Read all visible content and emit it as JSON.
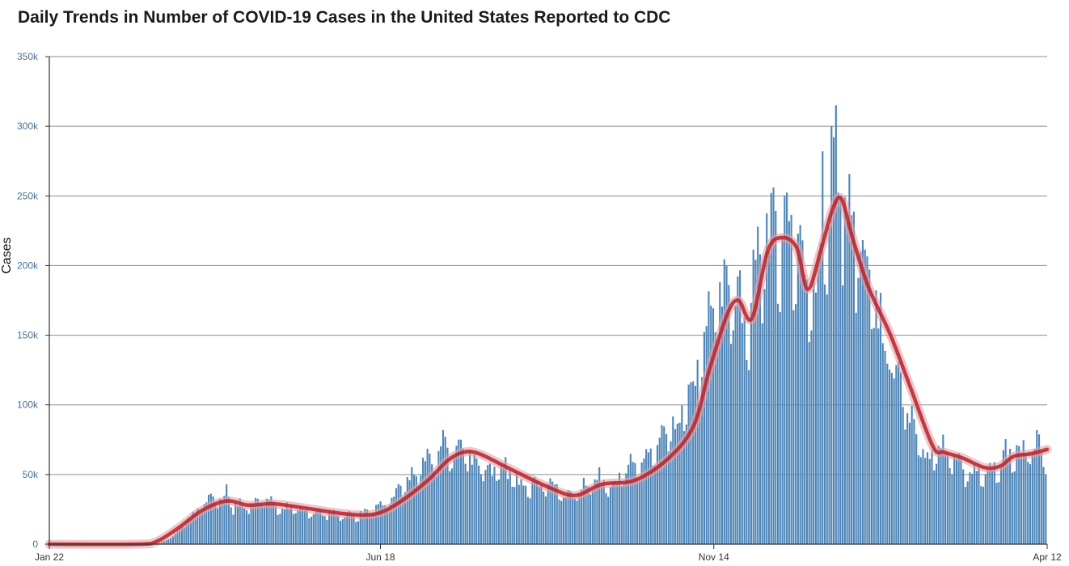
{
  "chart_data": {
    "type": "bar",
    "title": "Daily Trends in Number of COVID-19 Cases in the United States Reported to CDC",
    "ylabel": "Cases",
    "xlabel": "",
    "ylim": [
      0,
      350000
    ],
    "y_ticks": [
      {
        "value": 0,
        "label": "0"
      },
      {
        "value": 50000,
        "label": "50k"
      },
      {
        "value": 100000,
        "label": "100k"
      },
      {
        "value": 150000,
        "label": "150k"
      },
      {
        "value": 200000,
        "label": "200k"
      },
      {
        "value": 250000,
        "label": "250k"
      },
      {
        "value": 300000,
        "label": "300k"
      },
      {
        "value": 350000,
        "label": "350k"
      }
    ],
    "x_ticks": [
      {
        "date": "2020-01-22",
        "label": "Jan 22"
      },
      {
        "date": "2020-06-18",
        "label": "Jun 18"
      },
      {
        "date": "2020-11-14",
        "label": "Nov 14"
      },
      {
        "date": "2021-04-12",
        "label": "Apr 12"
      }
    ],
    "x_range": [
      "2020-01-22",
      "2021-04-12"
    ],
    "grid": true,
    "colors": {
      "bar": "#4f86b8",
      "bar_stroke": "#3a6f9e",
      "line": "#b5222d",
      "line_glow": "#e8a0a4",
      "grid": "#8c8c8c"
    },
    "series": [
      {
        "kind": "daily-bars",
        "points": [
          [
            "2020-01-22",
            0
          ],
          [
            "2020-02-15",
            0
          ],
          [
            "2020-03-01",
            100
          ],
          [
            "2020-03-05",
            300
          ],
          [
            "2020-03-08",
            700
          ],
          [
            "2020-03-11",
            1500
          ],
          [
            "2020-03-14",
            3000
          ],
          [
            "2020-03-17",
            6000
          ],
          [
            "2020-03-20",
            12000
          ],
          [
            "2020-03-23",
            17000
          ],
          [
            "2020-03-26",
            20000
          ],
          [
            "2020-03-29",
            26000
          ],
          [
            "2020-04-01",
            30000
          ],
          [
            "2020-04-04",
            35000
          ],
          [
            "2020-04-07",
            32000
          ],
          [
            "2020-04-10",
            34000
          ],
          [
            "2020-04-13",
            28000
          ],
          [
            "2020-04-16",
            31000
          ],
          [
            "2020-04-19",
            27000
          ],
          [
            "2020-04-24",
            32000
          ],
          [
            "2020-05-01",
            29000
          ],
          [
            "2020-05-08",
            27000
          ],
          [
            "2020-05-15",
            25000
          ],
          [
            "2020-05-22",
            23000
          ],
          [
            "2020-05-29",
            22000
          ],
          [
            "2020-06-05",
            21000
          ],
          [
            "2020-06-12",
            23000
          ],
          [
            "2020-06-18",
            27000
          ],
          [
            "2020-06-22",
            32000
          ],
          [
            "2020-06-26",
            40000
          ],
          [
            "2020-06-30",
            46000
          ],
          [
            "2020-07-04",
            52000
          ],
          [
            "2020-07-08",
            58000
          ],
          [
            "2020-07-12",
            62000
          ],
          [
            "2020-07-16",
            72000
          ],
          [
            "2020-07-20",
            67000
          ],
          [
            "2020-07-24",
            70000
          ],
          [
            "2020-07-28",
            64000
          ],
          [
            "2020-08-01",
            60000
          ],
          [
            "2020-08-05",
            55000
          ],
          [
            "2020-08-09",
            52000
          ],
          [
            "2020-08-13",
            53000
          ],
          [
            "2020-08-17",
            48000
          ],
          [
            "2020-08-21",
            46000
          ],
          [
            "2020-08-25",
            44000
          ],
          [
            "2020-08-29",
            45000
          ],
          [
            "2020-09-02",
            43000
          ],
          [
            "2020-09-06",
            40000
          ],
          [
            "2020-09-10",
            34000
          ],
          [
            "2020-09-14",
            38000
          ],
          [
            "2020-09-18",
            45000
          ],
          [
            "2020-09-22",
            46000
          ],
          [
            "2020-09-26",
            47000
          ],
          [
            "2020-09-30",
            45000
          ],
          [
            "2020-10-04",
            48000
          ],
          [
            "2020-10-08",
            55000
          ],
          [
            "2020-10-12",
            58000
          ],
          [
            "2020-10-16",
            65000
          ],
          [
            "2020-10-20",
            68000
          ],
          [
            "2020-10-24",
            80000
          ],
          [
            "2020-10-28",
            85000
          ],
          [
            "2020-11-01",
            95000
          ],
          [
            "2020-11-05",
            115000
          ],
          [
            "2020-11-09",
            135000
          ],
          [
            "2020-11-13",
            170000
          ],
          [
            "2020-11-17",
            175000
          ],
          [
            "2020-11-21",
            190000
          ],
          [
            "2020-11-25",
            178000
          ],
          [
            "2020-11-29",
            150000
          ],
          [
            "2020-12-03",
            210000
          ],
          [
            "2020-12-07",
            215000
          ],
          [
            "2020-12-11",
            235000
          ],
          [
            "2020-12-15",
            215000
          ],
          [
            "2020-12-19",
            225000
          ],
          [
            "2020-12-23",
            210000
          ],
          [
            "2020-12-27",
            170000
          ],
          [
            "2020-12-31",
            205000
          ],
          [
            "2021-01-04",
            230000
          ],
          [
            "2021-01-08",
            275000
          ],
          [
            "2021-01-12",
            240000
          ],
          [
            "2021-01-16",
            225000
          ],
          [
            "2021-01-20",
            205000
          ],
          [
            "2021-01-24",
            180000
          ],
          [
            "2021-01-28",
            160000
          ],
          [
            "2021-02-01",
            140000
          ],
          [
            "2021-02-05",
            120000
          ],
          [
            "2021-02-09",
            100000
          ],
          [
            "2021-02-13",
            85000
          ],
          [
            "2021-02-17",
            68000
          ],
          [
            "2021-02-21",
            65000
          ],
          [
            "2021-02-25",
            70000
          ],
          [
            "2021-03-01",
            58000
          ],
          [
            "2021-03-05",
            60000
          ],
          [
            "2021-03-09",
            50000
          ],
          [
            "2021-03-13",
            55000
          ],
          [
            "2021-03-17",
            55000
          ],
          [
            "2021-03-21",
            58000
          ],
          [
            "2021-03-25",
            65000
          ],
          [
            "2021-03-29",
            65000
          ],
          [
            "2021-04-02",
            68000
          ],
          [
            "2021-04-06",
            72000
          ],
          [
            "2021-04-09",
            75000
          ],
          [
            "2021-04-12",
            57000
          ]
        ],
        "spikes": [
          [
            "2020-04-10",
            43000
          ],
          [
            "2020-07-24",
            75000
          ],
          [
            "2020-11-20",
            200000
          ],
          [
            "2020-12-04",
            228000
          ],
          [
            "2020-12-10",
            252000
          ],
          [
            "2020-12-16",
            250000
          ],
          [
            "2020-12-18",
            232000
          ],
          [
            "2021-01-02",
            282000
          ],
          [
            "2021-01-06",
            300000
          ],
          [
            "2021-01-08",
            315000
          ],
          [
            "2021-01-10",
            250000
          ],
          [
            "2021-04-08",
            82000
          ]
        ]
      },
      {
        "kind": "7-day-average-line",
        "points": [
          [
            "2020-01-22",
            0
          ],
          [
            "2020-03-01",
            0
          ],
          [
            "2020-03-10",
            2000
          ],
          [
            "2020-03-20",
            12000
          ],
          [
            "2020-03-30",
            24000
          ],
          [
            "2020-04-10",
            31000
          ],
          [
            "2020-04-20",
            28000
          ],
          [
            "2020-05-01",
            29000
          ],
          [
            "2020-05-15",
            26000
          ],
          [
            "2020-06-01",
            22000
          ],
          [
            "2020-06-12",
            21000
          ],
          [
            "2020-06-20",
            24000
          ],
          [
            "2020-06-30",
            34000
          ],
          [
            "2020-07-10",
            47000
          ],
          [
            "2020-07-18",
            60000
          ],
          [
            "2020-07-25",
            66000
          ],
          [
            "2020-08-01",
            65000
          ],
          [
            "2020-08-15",
            54000
          ],
          [
            "2020-09-01",
            41000
          ],
          [
            "2020-09-13",
            35000
          ],
          [
            "2020-09-25",
            43000
          ],
          [
            "2020-10-10",
            46000
          ],
          [
            "2020-10-25",
            62000
          ],
          [
            "2020-11-05",
            85000
          ],
          [
            "2020-11-12",
            125000
          ],
          [
            "2020-11-20",
            165000
          ],
          [
            "2020-11-25",
            175000
          ],
          [
            "2020-12-01",
            162000
          ],
          [
            "2020-12-08",
            210000
          ],
          [
            "2020-12-14",
            220000
          ],
          [
            "2020-12-21",
            213000
          ],
          [
            "2020-12-26",
            183000
          ],
          [
            "2021-01-01",
            212000
          ],
          [
            "2021-01-06",
            240000
          ],
          [
            "2021-01-10",
            248000
          ],
          [
            "2021-01-15",
            220000
          ],
          [
            "2021-01-22",
            185000
          ],
          [
            "2021-02-01",
            150000
          ],
          [
            "2021-02-10",
            112000
          ],
          [
            "2021-02-20",
            70000
          ],
          [
            "2021-02-25",
            66000
          ],
          [
            "2021-03-05",
            62000
          ],
          [
            "2021-03-15",
            55000
          ],
          [
            "2021-03-22",
            56000
          ],
          [
            "2021-03-28",
            63000
          ],
          [
            "2021-04-05",
            65000
          ],
          [
            "2021-04-12",
            68000
          ]
        ]
      }
    ]
  }
}
